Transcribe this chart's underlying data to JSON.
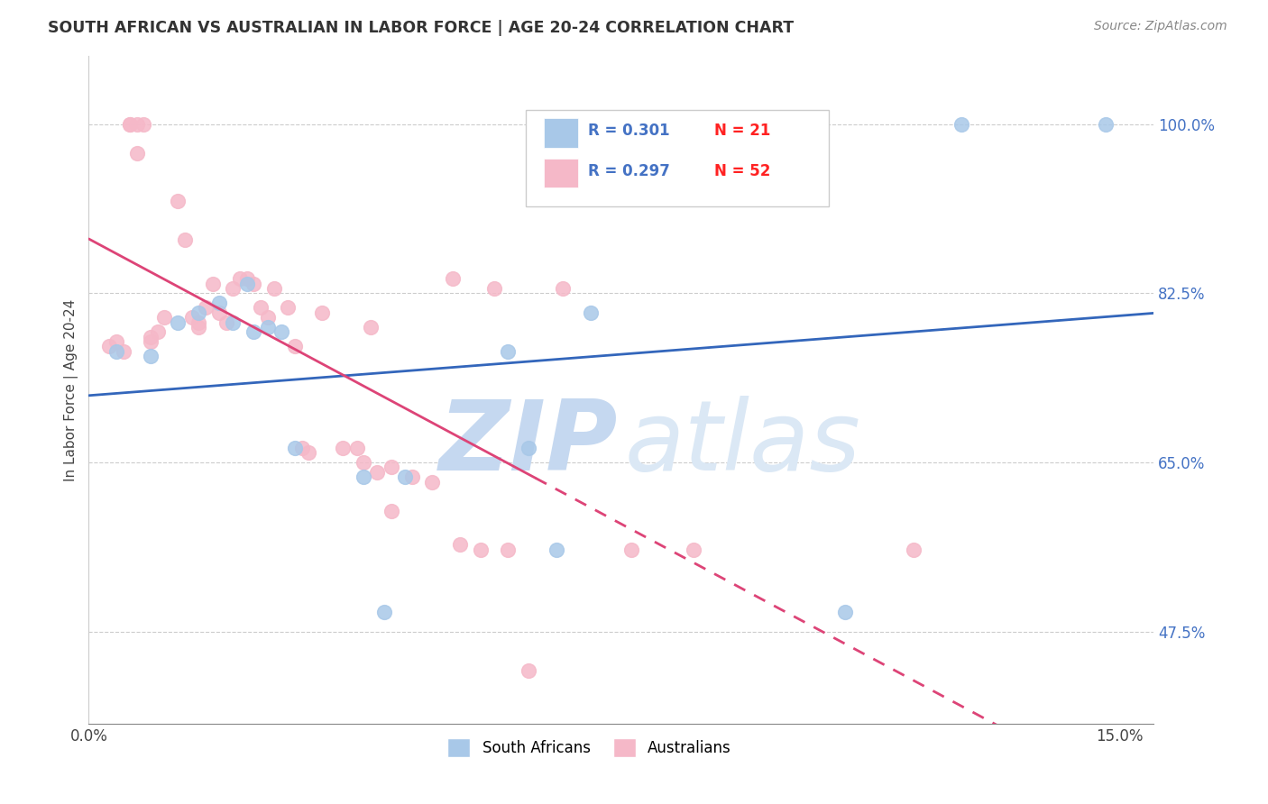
{
  "title": "SOUTH AFRICAN VS AUSTRALIAN IN LABOR FORCE | AGE 20-24 CORRELATION CHART",
  "source": "Source: ZipAtlas.com",
  "ylabel": "In Labor Force | Age 20-24",
  "y_ticks": [
    47.5,
    65.0,
    82.5,
    100.0
  ],
  "y_tick_labels": [
    "47.5%",
    "65.0%",
    "82.5%",
    "100.0%"
  ],
  "x_ticks": [
    0.0,
    0.025,
    0.05,
    0.075,
    0.1,
    0.125,
    0.15
  ],
  "xlim": [
    0.0,
    0.155
  ],
  "ylim": [
    38.0,
    107.0
  ],
  "south_africans_label": "South Africans",
  "australians_label": "Australians",
  "blue_scatter_color": "#a8c8e8",
  "pink_scatter_color": "#f5b8c8",
  "blue_line_color": "#3366bb",
  "pink_line_color": "#dd4477",
  "watermark_zip_color": "#c8dff5",
  "watermark_atlas_color": "#d8e8f5",
  "r_color": "#4472c4",
  "n_color": "#ff2222",
  "legend_blue_fill": "#a8c8e8",
  "legend_pink_fill": "#f5b8c8",
  "blue_x": [
    0.004,
    0.009,
    0.013,
    0.016,
    0.019,
    0.021,
    0.023,
    0.024,
    0.026,
    0.028,
    0.03,
    0.04,
    0.043,
    0.046,
    0.061,
    0.064,
    0.068,
    0.073,
    0.11,
    0.127,
    0.148
  ],
  "blue_y": [
    76.5,
    76.0,
    79.5,
    80.5,
    81.5,
    79.5,
    83.5,
    78.5,
    79.0,
    78.5,
    66.5,
    63.5,
    49.5,
    63.5,
    76.5,
    66.5,
    56.0,
    80.5,
    49.5,
    100.0,
    100.0
  ],
  "pink_x": [
    0.003,
    0.004,
    0.005,
    0.006,
    0.006,
    0.007,
    0.007,
    0.008,
    0.009,
    0.009,
    0.01,
    0.011,
    0.013,
    0.014,
    0.015,
    0.016,
    0.016,
    0.017,
    0.018,
    0.019,
    0.02,
    0.021,
    0.022,
    0.023,
    0.024,
    0.025,
    0.026,
    0.027,
    0.029,
    0.03,
    0.031,
    0.032,
    0.034,
    0.037,
    0.039,
    0.04,
    0.041,
    0.042,
    0.044,
    0.044,
    0.047,
    0.05,
    0.053,
    0.054,
    0.057,
    0.059,
    0.061,
    0.064,
    0.069,
    0.079,
    0.088,
    0.12
  ],
  "pink_y": [
    77.0,
    77.5,
    76.5,
    100.0,
    100.0,
    97.0,
    100.0,
    100.0,
    77.5,
    78.0,
    78.5,
    80.0,
    92.0,
    88.0,
    80.0,
    79.5,
    79.0,
    81.0,
    83.5,
    80.5,
    79.5,
    83.0,
    84.0,
    84.0,
    83.5,
    81.0,
    80.0,
    83.0,
    81.0,
    77.0,
    66.5,
    66.0,
    80.5,
    66.5,
    66.5,
    65.0,
    79.0,
    64.0,
    60.0,
    64.5,
    63.5,
    63.0,
    84.0,
    56.5,
    56.0,
    83.0,
    56.0,
    43.5,
    83.0,
    56.0,
    56.0,
    56.0
  ]
}
